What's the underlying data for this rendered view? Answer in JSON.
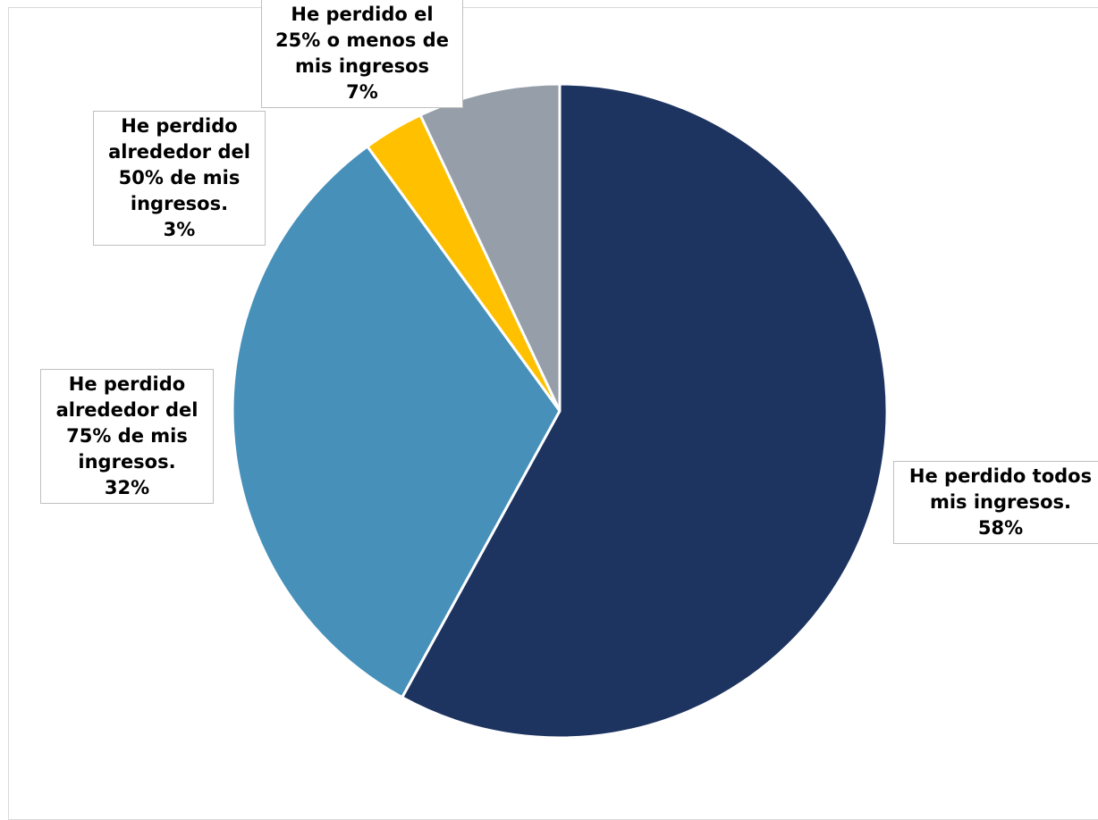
{
  "chart_data": {
    "type": "pie",
    "slices": [
      {
        "label": "He perdido todos mis ingresos.",
        "value": 58,
        "value_label": "58%",
        "color": "#1d3360"
      },
      {
        "label": "He perdido alrededor del 75% de mis ingresos.",
        "value": 32,
        "value_label": "32%",
        "color": "#4690b9"
      },
      {
        "label": "He perdido alrededor del 50% de mis ingresos.",
        "value": 3,
        "value_label": "3%",
        "color": "#ffc000"
      },
      {
        "label": "He perdido el 25% o menos de mis ingresos",
        "value": 7,
        "value_label": "7%",
        "color": "#969fa9"
      }
    ],
    "start_angle_deg": 0,
    "direction": "clockwise",
    "slice_border_color": "#ffffff"
  }
}
